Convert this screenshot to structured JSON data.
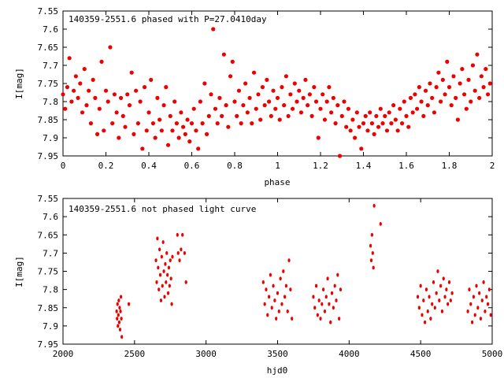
{
  "chart_data": [
    {
      "type": "scatter",
      "title": "140359-2551.6 phased with P=27.0410day",
      "xlabel": "phase",
      "ylabel": "I[mag]",
      "xlim": [
        0,
        2
      ],
      "ylim": [
        7.55,
        7.95
      ],
      "y_inverted": true,
      "x_ticks": [
        "0",
        "0.2",
        "0.4",
        "0.6",
        "0.8",
        "1",
        "1.2",
        "1.4",
        "1.6",
        "1.8",
        "2"
      ],
      "y_ticks": [
        "7.55",
        "7.6",
        "7.65",
        "7.7",
        "7.75",
        "7.8",
        "7.85",
        "7.9",
        "7.95"
      ],
      "marker_color": "#ee0000",
      "points": [
        [
          0.0,
          7.78
        ],
        [
          0.01,
          7.82
        ],
        [
          0.02,
          7.76
        ],
        [
          0.03,
          7.68
        ],
        [
          0.04,
          7.8
        ],
        [
          0.05,
          7.77
        ],
        [
          0.06,
          7.73
        ],
        [
          0.07,
          7.79
        ],
        [
          0.08,
          7.75
        ],
        [
          0.09,
          7.83
        ],
        [
          0.1,
          7.71
        ],
        [
          0.11,
          7.81
        ],
        [
          0.12,
          7.77
        ],
        [
          0.13,
          7.86
        ],
        [
          0.14,
          7.74
        ],
        [
          0.15,
          7.79
        ],
        [
          0.16,
          7.89
        ],
        [
          0.17,
          7.82
        ],
        [
          0.18,
          7.69
        ],
        [
          0.19,
          7.88
        ],
        [
          0.2,
          7.77
        ],
        [
          0.21,
          7.8
        ],
        [
          0.22,
          7.65
        ],
        [
          0.23,
          7.86
        ],
        [
          0.24,
          7.78
        ],
        [
          0.25,
          7.83
        ],
        [
          0.26,
          7.9
        ],
        [
          0.27,
          7.79
        ],
        [
          0.28,
          7.84
        ],
        [
          0.29,
          7.87
        ],
        [
          0.3,
          7.78
        ],
        [
          0.31,
          7.81
        ],
        [
          0.32,
          7.72
        ],
        [
          0.33,
          7.89
        ],
        [
          0.34,
          7.77
        ],
        [
          0.35,
          7.86
        ],
        [
          0.36,
          7.8
        ],
        [
          0.37,
          7.93
        ],
        [
          0.38,
          7.76
        ],
        [
          0.39,
          7.88
        ],
        [
          0.4,
          7.83
        ],
        [
          0.41,
          7.74
        ],
        [
          0.42,
          7.86
        ],
        [
          0.43,
          7.9
        ],
        [
          0.44,
          7.79
        ],
        [
          0.45,
          7.85
        ],
        [
          0.46,
          7.88
        ],
        [
          0.47,
          7.81
        ],
        [
          0.48,
          7.76
        ],
        [
          0.49,
          7.92
        ],
        [
          0.5,
          7.84
        ],
        [
          0.51,
          7.88
        ],
        [
          0.52,
          7.8
        ],
        [
          0.53,
          7.86
        ],
        [
          0.54,
          7.9
        ],
        [
          0.55,
          7.83
        ],
        [
          0.56,
          7.87
        ],
        [
          0.57,
          7.89
        ],
        [
          0.58,
          7.85
        ],
        [
          0.59,
          7.91
        ],
        [
          0.6,
          7.86
        ],
        [
          0.61,
          7.82
        ],
        [
          0.62,
          7.88
        ],
        [
          0.63,
          7.93
        ],
        [
          0.64,
          7.8
        ],
        [
          0.65,
          7.86
        ],
        [
          0.66,
          7.75
        ],
        [
          0.67,
          7.89
        ],
        [
          0.68,
          7.84
        ],
        [
          0.69,
          7.78
        ],
        [
          0.7,
          7.6
        ],
        [
          0.71,
          7.82
        ],
        [
          0.72,
          7.86
        ],
        [
          0.73,
          7.79
        ],
        [
          0.74,
          7.84
        ],
        [
          0.75,
          7.67
        ],
        [
          0.76,
          7.81
        ],
        [
          0.77,
          7.87
        ],
        [
          0.78,
          7.73
        ],
        [
          0.79,
          7.69
        ],
        [
          0.8,
          7.8
        ],
        [
          0.81,
          7.84
        ],
        [
          0.82,
          7.77
        ],
        [
          0.83,
          7.86
        ],
        [
          0.84,
          7.81
        ],
        [
          0.85,
          7.75
        ],
        [
          0.86,
          7.83
        ],
        [
          0.87,
          7.79
        ],
        [
          0.88,
          7.86
        ],
        [
          0.89,
          7.72
        ],
        [
          0.9,
          7.82
        ],
        [
          0.91,
          7.78
        ],
        [
          0.92,
          7.85
        ],
        [
          0.93,
          7.76
        ],
        [
          0.94,
          7.81
        ],
        [
          0.95,
          7.74
        ],
        [
          0.96,
          7.8
        ],
        [
          0.97,
          7.84
        ],
        [
          0.98,
          7.77
        ],
        [
          0.99,
          7.82
        ],
        [
          1.0,
          7.79
        ],
        [
          1.01,
          7.85
        ],
        [
          1.02,
          7.76
        ],
        [
          1.03,
          7.81
        ],
        [
          1.04,
          7.73
        ],
        [
          1.05,
          7.84
        ],
        [
          1.06,
          7.78
        ],
        [
          1.07,
          7.82
        ],
        [
          1.08,
          7.75
        ],
        [
          1.09,
          7.8
        ],
        [
          1.1,
          7.77
        ],
        [
          1.11,
          7.83
        ],
        [
          1.12,
          7.79
        ],
        [
          1.13,
          7.74
        ],
        [
          1.14,
          7.81
        ],
        [
          1.15,
          7.78
        ],
        [
          1.16,
          7.84
        ],
        [
          1.17,
          7.76
        ],
        [
          1.18,
          7.8
        ],
        [
          1.19,
          7.9
        ],
        [
          1.2,
          7.82
        ],
        [
          1.21,
          7.78
        ],
        [
          1.22,
          7.85
        ],
        [
          1.23,
          7.8
        ],
        [
          1.24,
          7.76
        ],
        [
          1.25,
          7.83
        ],
        [
          1.26,
          7.79
        ],
        [
          1.27,
          7.86
        ],
        [
          1.28,
          7.81
        ],
        [
          1.29,
          7.95
        ],
        [
          1.3,
          7.84
        ],
        [
          1.31,
          7.8
        ],
        [
          1.32,
          7.87
        ],
        [
          1.33,
          7.82
        ],
        [
          1.34,
          7.88
        ],
        [
          1.35,
          7.85
        ],
        [
          1.36,
          7.9
        ],
        [
          1.37,
          7.83
        ],
        [
          1.38,
          7.87
        ],
        [
          1.39,
          7.93
        ],
        [
          1.4,
          7.86
        ],
        [
          1.41,
          7.84
        ],
        [
          1.42,
          7.88
        ],
        [
          1.43,
          7.83
        ],
        [
          1.44,
          7.86
        ],
        [
          1.45,
          7.89
        ],
        [
          1.46,
          7.84
        ],
        [
          1.47,
          7.87
        ],
        [
          1.48,
          7.82
        ],
        [
          1.49,
          7.86
        ],
        [
          1.5,
          7.84
        ],
        [
          1.51,
          7.88
        ],
        [
          1.52,
          7.83
        ],
        [
          1.53,
          7.86
        ],
        [
          1.54,
          7.81
        ],
        [
          1.55,
          7.85
        ],
        [
          1.56,
          7.88
        ],
        [
          1.57,
          7.82
        ],
        [
          1.58,
          7.86
        ],
        [
          1.59,
          7.8
        ],
        [
          1.6,
          7.84
        ],
        [
          1.61,
          7.87
        ],
        [
          1.62,
          7.79
        ],
        [
          1.63,
          7.83
        ],
        [
          1.64,
          7.78
        ],
        [
          1.65,
          7.82
        ],
        [
          1.66,
          7.76
        ],
        [
          1.67,
          7.8
        ],
        [
          1.68,
          7.84
        ],
        [
          1.69,
          7.77
        ],
        [
          1.7,
          7.81
        ],
        [
          1.71,
          7.75
        ],
        [
          1.72,
          7.79
        ],
        [
          1.73,
          7.83
        ],
        [
          1.74,
          7.76
        ],
        [
          1.75,
          7.72
        ],
        [
          1.76,
          7.8
        ],
        [
          1.77,
          7.74
        ],
        [
          1.78,
          7.78
        ],
        [
          1.79,
          7.69
        ],
        [
          1.8,
          7.76
        ],
        [
          1.81,
          7.81
        ],
        [
          1.82,
          7.73
        ],
        [
          1.83,
          7.79
        ],
        [
          1.84,
          7.85
        ],
        [
          1.85,
          7.75
        ],
        [
          1.86,
          7.71
        ],
        [
          1.87,
          7.78
        ],
        [
          1.88,
          7.82
        ],
        [
          1.89,
          7.74
        ],
        [
          1.9,
          7.8
        ],
        [
          1.91,
          7.7
        ],
        [
          1.92,
          7.77
        ],
        [
          1.93,
          7.67
        ],
        [
          1.94,
          7.79
        ],
        [
          1.95,
          7.73
        ],
        [
          1.96,
          7.76
        ],
        [
          1.97,
          7.71
        ],
        [
          1.98,
          7.78
        ],
        [
          1.99,
          7.75
        ]
      ]
    },
    {
      "type": "scatter",
      "title": "140359-2551.6 not phased light curve",
      "xlabel": "hjd0",
      "ylabel": "I[mag]",
      "xlim": [
        2000,
        5000
      ],
      "ylim": [
        7.55,
        7.95
      ],
      "y_inverted": true,
      "x_ticks": [
        "2000",
        "2500",
        "3000",
        "3500",
        "4000",
        "4500",
        "5000"
      ],
      "y_ticks": [
        "7.55",
        "7.6",
        "7.65",
        "7.7",
        "7.75",
        "7.8",
        "7.85",
        "7.9",
        "7.95"
      ],
      "marker_color": "#ee0000",
      "points": [
        [
          2375,
          7.86
        ],
        [
          2378,
          7.88
        ],
        [
          2381,
          7.84
        ],
        [
          2384,
          7.9
        ],
        [
          2387,
          7.87
        ],
        [
          2390,
          7.83
        ],
        [
          2393,
          7.89
        ],
        [
          2396,
          7.85
        ],
        [
          2399,
          7.91
        ],
        [
          2402,
          7.86
        ],
        [
          2405,
          7.82
        ],
        [
          2408,
          7.88
        ],
        [
          2411,
          7.93
        ],
        [
          2460,
          7.84
        ],
        [
          2650,
          7.72
        ],
        [
          2655,
          7.78
        ],
        [
          2660,
          7.66
        ],
        [
          2665,
          7.74
        ],
        [
          2670,
          7.8
        ],
        [
          2675,
          7.69
        ],
        [
          2680,
          7.76
        ],
        [
          2685,
          7.83
        ],
        [
          2690,
          7.71
        ],
        [
          2695,
          7.79
        ],
        [
          2700,
          7.67
        ],
        [
          2705,
          7.75
        ],
        [
          2710,
          7.82
        ],
        [
          2715,
          7.73
        ],
        [
          2720,
          7.78
        ],
        [
          2725,
          7.7
        ],
        [
          2730,
          7.76
        ],
        [
          2735,
          7.81
        ],
        [
          2740,
          7.74
        ],
        [
          2745,
          7.79
        ],
        [
          2750,
          7.72
        ],
        [
          2755,
          7.77
        ],
        [
          2760,
          7.84
        ],
        [
          2765,
          7.71
        ],
        [
          2800,
          7.65
        ],
        [
          2805,
          7.7
        ],
        [
          2815,
          7.72
        ],
        [
          2825,
          7.69
        ],
        [
          2835,
          7.65
        ],
        [
          2850,
          7.7
        ],
        [
          2860,
          7.78
        ],
        [
          3400,
          7.78
        ],
        [
          3410,
          7.84
        ],
        [
          3420,
          7.8
        ],
        [
          3430,
          7.87
        ],
        [
          3440,
          7.82
        ],
        [
          3450,
          7.76
        ],
        [
          3460,
          7.85
        ],
        [
          3470,
          7.79
        ],
        [
          3480,
          7.83
        ],
        [
          3490,
          7.88
        ],
        [
          3500,
          7.81
        ],
        [
          3510,
          7.86
        ],
        [
          3520,
          7.77
        ],
        [
          3530,
          7.84
        ],
        [
          3540,
          7.75
        ],
        [
          3550,
          7.82
        ],
        [
          3560,
          7.79
        ],
        [
          3570,
          7.86
        ],
        [
          3580,
          7.72
        ],
        [
          3590,
          7.8
        ],
        [
          3600,
          7.88
        ],
        [
          3750,
          7.82
        ],
        [
          3760,
          7.85
        ],
        [
          3770,
          7.79
        ],
        [
          3780,
          7.87
        ],
        [
          3790,
          7.83
        ],
        [
          3800,
          7.88
        ],
        [
          3810,
          7.84
        ],
        [
          3820,
          7.8
        ],
        [
          3830,
          7.86
        ],
        [
          3840,
          7.82
        ],
        [
          3850,
          7.77
        ],
        [
          3860,
          7.84
        ],
        [
          3870,
          7.89
        ],
        [
          3880,
          7.81
        ],
        [
          3890,
          7.85
        ],
        [
          3900,
          7.79
        ],
        [
          3910,
          7.83
        ],
        [
          3920,
          7.76
        ],
        [
          3930,
          7.88
        ],
        [
          3940,
          7.8
        ],
        [
          4150,
          7.68
        ],
        [
          4155,
          7.72
        ],
        [
          4160,
          7.65
        ],
        [
          4165,
          7.7
        ],
        [
          4170,
          7.74
        ],
        [
          4175,
          7.57
        ],
        [
          4220,
          7.62
        ],
        [
          4480,
          7.82
        ],
        [
          4490,
          7.85
        ],
        [
          4500,
          7.79
        ],
        [
          4510,
          7.87
        ],
        [
          4520,
          7.83
        ],
        [
          4530,
          7.89
        ],
        [
          4540,
          7.8
        ],
        [
          4550,
          7.86
        ],
        [
          4560,
          7.82
        ],
        [
          4570,
          7.88
        ],
        [
          4580,
          7.84
        ],
        [
          4590,
          7.78
        ],
        [
          4600,
          7.85
        ],
        [
          4610,
          7.81
        ],
        [
          4620,
          7.75
        ],
        [
          4630,
          7.83
        ],
        [
          4640,
          7.79
        ],
        [
          4650,
          7.86
        ],
        [
          4660,
          7.77
        ],
        [
          4670,
          7.82
        ],
        [
          4680,
          7.8
        ],
        [
          4690,
          7.84
        ],
        [
          4700,
          7.78
        ],
        [
          4710,
          7.83
        ],
        [
          4720,
          7.81
        ],
        [
          4830,
          7.86
        ],
        [
          4840,
          7.8
        ],
        [
          4850,
          7.84
        ],
        [
          4860,
          7.89
        ],
        [
          4870,
          7.82
        ],
        [
          4880,
          7.87
        ],
        [
          4890,
          7.79
        ],
        [
          4900,
          7.85
        ],
        [
          4910,
          7.81
        ],
        [
          4920,
          7.88
        ],
        [
          4930,
          7.83
        ],
        [
          4940,
          7.78
        ],
        [
          4950,
          7.86
        ],
        [
          4960,
          7.82
        ],
        [
          4970,
          7.84
        ],
        [
          4980,
          7.8
        ],
        [
          4990,
          7.87
        ]
      ]
    }
  ]
}
